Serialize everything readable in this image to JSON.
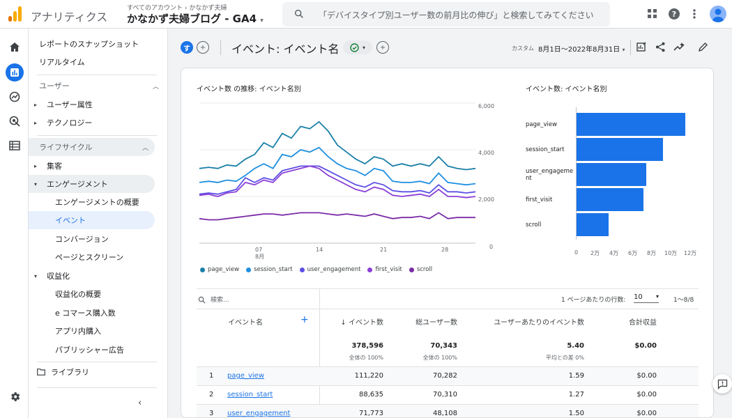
{
  "app": {
    "name": "アナリティクス",
    "account_crumb": "すべてのアカウント",
    "account_sub": "かなかず夫婦",
    "property": "かなかず夫婦ブログ - GA4"
  },
  "search": {
    "placeholder": "「デバイスタイプ別ユーザー数の前月比の伸び」と検索してみてください"
  },
  "nav": {
    "snapshot": "レポートのスナップショット",
    "realtime": "リアルタイム",
    "users_section": "ユーザー",
    "user_attr": "ユーザー属性",
    "technology": "テクノロジー",
    "lifecycle_section": "ライフサイクル",
    "acquisition": "集客",
    "engagement": "エンゲージメント",
    "eng_overview": "エンゲージメントの概要",
    "events": "イベント",
    "conversions": "コンバージョン",
    "pages": "ページとスクリーン",
    "monetization": "収益化",
    "mon_overview": "収益化の概要",
    "ecommerce": "e コマース購入数",
    "inapp": "アプリ内購入",
    "publisher": "パブリッシャー広告",
    "library": "ライブラリ"
  },
  "header": {
    "avatar_letter": "す",
    "title": "イベント: イベント名",
    "custom": "カスタム",
    "date_range": "8月1日〜2022年8月31日"
  },
  "line_chart": {
    "title": "イベント数 の推移: イベント名別",
    "y_ticks": [
      "6,000",
      "4,000",
      "2,000",
      "0"
    ],
    "x_ticks": [
      "07",
      "14",
      "21",
      "28"
    ],
    "x_month": "8月"
  },
  "bar_chart": {
    "title": "イベント数: イベント名別",
    "x_ticks": [
      "0",
      "2万",
      "4万",
      "6万",
      "8万",
      "10万",
      "12万"
    ]
  },
  "colors": {
    "page_view": "#1a7fa8",
    "session_start": "#1e8fe0",
    "user_engagement": "#5c4ee5",
    "first_visit": "#8b3fd6",
    "scroll": "#7a2ba6",
    "accent": "#1a73e8"
  },
  "chart_data": [
    {
      "type": "line",
      "x": [
        "1",
        "2",
        "3",
        "4",
        "5",
        "6",
        "7",
        "8",
        "9",
        "10",
        "11",
        "12",
        "13",
        "14",
        "15",
        "16",
        "17",
        "18",
        "19",
        "20",
        "21",
        "22",
        "23",
        "24",
        "25",
        "26",
        "27",
        "28",
        "29",
        "30",
        "31"
      ],
      "ylim": [
        0,
        6000
      ],
      "series": [
        {
          "name": "page_view",
          "values": [
            3200,
            3250,
            3200,
            3350,
            3300,
            3600,
            3800,
            4300,
            4100,
            4700,
            4500,
            5000,
            4900,
            5200,
            4800,
            4200,
            3900,
            3600,
            3400,
            3700,
            3600,
            3300,
            3400,
            3300,
            3400,
            3300,
            3700,
            3300,
            3200,
            3150,
            3200
          ]
        },
        {
          "name": "session_start",
          "values": [
            2600,
            2650,
            2600,
            2700,
            2650,
            2900,
            3200,
            3400,
            3200,
            3800,
            3700,
            4000,
            3900,
            4100,
            3700,
            3400,
            3200,
            3100,
            2900,
            3200,
            3100,
            2650,
            2600,
            2600,
            2650,
            2550,
            3000,
            2600,
            2550,
            2500,
            2550
          ]
        },
        {
          "name": "user_engagement",
          "values": [
            2100,
            2150,
            2100,
            2200,
            2300,
            2800,
            2600,
            2800,
            2700,
            3100,
            3200,
            3300,
            3300,
            3300,
            3100,
            2900,
            2700,
            2500,
            2400,
            2600,
            2500,
            2250,
            2200,
            2200,
            2250,
            2150,
            2500,
            2200,
            2200,
            2150,
            2200
          ]
        },
        {
          "name": "first_visit",
          "values": [
            2050,
            2100,
            2000,
            2150,
            2200,
            2600,
            2500,
            2700,
            2600,
            3000,
            3100,
            3200,
            3300,
            3200,
            2900,
            2700,
            2500,
            2300,
            2200,
            2400,
            2300,
            2050,
            2000,
            2050,
            2100,
            2000,
            2300,
            2000,
            2000,
            1950,
            2000
          ]
        },
        {
          "name": "scroll",
          "values": [
            1050,
            1000,
            1000,
            1050,
            1100,
            1150,
            1200,
            1250,
            1250,
            1200,
            1250,
            1300,
            1300,
            1300,
            1250,
            1200,
            1250,
            1200,
            1150,
            1250,
            1150,
            1050,
            1100,
            1100,
            1150,
            1050,
            1300,
            1050,
            1100,
            1100,
            1100
          ]
        }
      ]
    },
    {
      "type": "bar",
      "categories": [
        "page_view",
        "session_start",
        "user_engagement",
        "first_visit",
        "scroll"
      ],
      "values": [
        111220,
        88635,
        71773,
        68500,
        32500
      ],
      "xlim": [
        0,
        120000
      ]
    }
  ],
  "table": {
    "search_placeholder": "検索...",
    "rows_per_page_label": "1 ページあたりの行数:",
    "rows_per_page": "10",
    "page_range": "1〜8/8",
    "headers": {
      "name": "イベント名",
      "events": "イベント数",
      "users": "総ユーザー数",
      "per_user": "ユーザーあたりのイベント数",
      "revenue": "合計収益"
    },
    "totals": {
      "events": "378,596",
      "events_sub": "全体の 100%",
      "users": "70,343",
      "users_sub": "全体の 100%",
      "per_user": "5.40",
      "per_user_sub": "平均との差 0%",
      "revenue": "$0.00"
    },
    "rows": [
      {
        "idx": "1",
        "name": "page_view",
        "events": "111,220",
        "users": "70,282",
        "per_user": "1.59",
        "revenue": "$0.00"
      },
      {
        "idx": "2",
        "name": "session_start",
        "events": "88,635",
        "users": "70,310",
        "per_user": "1.27",
        "revenue": "$0.00"
      },
      {
        "idx": "3",
        "name": "user_engagement",
        "events": "71,773",
        "users": "48,108",
        "per_user": "1.50",
        "revenue": "$0.00"
      }
    ]
  }
}
